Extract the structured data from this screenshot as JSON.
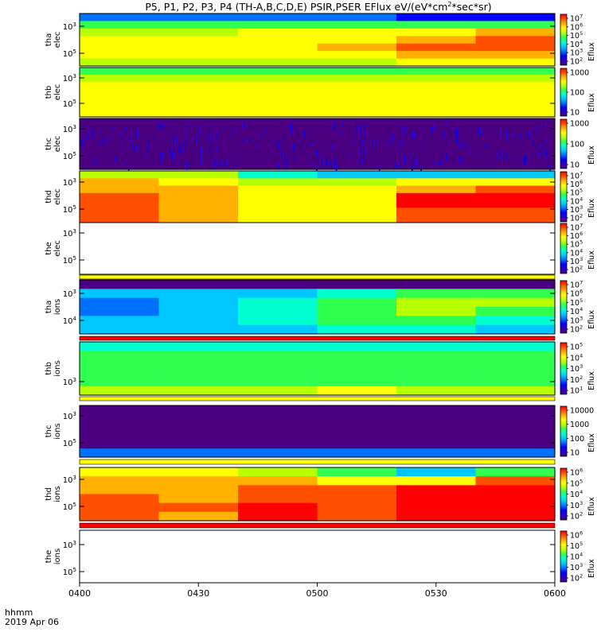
{
  "title_main": "P5, P1, P2, P3, P4 (TH-A,B,C,D,E) PSIR,PSER EFlux eV/(eV*cm",
  "title_sup": "2",
  "title_tail": "*sec*sr)",
  "time_axis": {
    "ticks": [
      "0400",
      "0430",
      "0500",
      "0530",
      "0600"
    ],
    "label_line1": "hhmm",
    "label_line2": "2019 Apr 06"
  },
  "colors": {
    "colorbar": [
      "#4b0082",
      "#2d00c8",
      "#0000ff",
      "#0070ff",
      "#00c8ff",
      "#00ffd0",
      "#30ff50",
      "#b8ff00",
      "#ffff00",
      "#ffb000",
      "#ff5000",
      "#ff0000"
    ],
    "bar_yellow": "#ffff00",
    "bar_red": "#ff0000",
    "no_data": "#ffffff"
  },
  "chart_data": [
    {
      "type": "heatmap",
      "probe": "tha",
      "species": "elec",
      "ylabel_line1": "tha",
      "ylabel_line2": "elec",
      "yticks": [
        {
          "base": "10",
          "exp": "3"
        },
        {
          "base": "10",
          "exp": "5"
        }
      ],
      "colorbar_ticks": [
        {
          "base": "10",
          "exp": "7"
        },
        {
          "base": "10",
          "exp": "6"
        },
        {
          "base": "10",
          "exp": "5"
        },
        {
          "base": "10",
          "exp": "4"
        },
        {
          "base": "10",
          "exp": "3"
        },
        {
          "base": "10",
          "exp": "2"
        }
      ],
      "colorbar_label": "Eflux",
      "x_range": [
        "0400",
        "0600"
      ],
      "band_levels": [
        [
          3,
          3,
          3,
          3,
          2,
          2
        ],
        [
          6,
          6,
          6,
          6,
          6,
          6
        ],
        [
          7,
          7,
          8,
          8,
          8,
          9
        ],
        [
          8,
          8,
          8,
          8,
          9,
          10
        ],
        [
          8,
          8,
          8,
          9,
          10,
          10
        ],
        [
          8,
          8,
          8,
          8,
          9,
          9
        ],
        [
          7,
          7,
          7,
          7,
          8,
          8
        ]
      ]
    },
    {
      "type": "heatmap",
      "probe": "thb",
      "species": "elec",
      "ylabel_line1": "thb",
      "ylabel_line2": "elec",
      "yticks": [
        {
          "base": "10",
          "exp": "3"
        },
        {
          "base": "10",
          "exp": "5"
        }
      ],
      "colorbar_ticks": [
        {
          "base": "",
          "exp": "1000"
        },
        {
          "base": "",
          "exp": "100"
        },
        {
          "base": "",
          "exp": "10"
        }
      ],
      "colorbar_label": "Eflux",
      "x_range": [
        "0400",
        "0600"
      ],
      "band_levels": [
        [
          6,
          6,
          6,
          6,
          6,
          6
        ],
        [
          7,
          7,
          7,
          7,
          7,
          7
        ],
        [
          8,
          8,
          8,
          8,
          8,
          8
        ],
        [
          8,
          8,
          8,
          8,
          8,
          8
        ],
        [
          8,
          8,
          8,
          8,
          8,
          8
        ],
        [
          8,
          8,
          8,
          8,
          8,
          8
        ],
        [
          8,
          8,
          8,
          8,
          8,
          8
        ]
      ]
    },
    {
      "type": "heatmap",
      "probe": "thc",
      "species": "elec",
      "ylabel_line1": "thc",
      "ylabel_line2": "elec",
      "yticks": [
        {
          "base": "10",
          "exp": "3"
        },
        {
          "base": "10",
          "exp": "5"
        }
      ],
      "colorbar_ticks": [
        {
          "base": "",
          "exp": "1000"
        },
        {
          "base": "",
          "exp": "100"
        },
        {
          "base": "",
          "exp": "10"
        }
      ],
      "colorbar_label": "Eflux",
      "x_range": [
        "0400",
        "0600"
      ],
      "band_levels": [
        [
          0,
          0,
          0,
          0,
          0,
          0
        ],
        [
          0,
          0,
          0,
          0,
          0,
          0
        ],
        [
          0,
          0,
          0,
          0,
          0,
          0
        ],
        [
          0,
          0,
          0,
          0,
          0,
          0
        ],
        [
          0,
          0,
          0,
          0,
          0,
          0
        ],
        [
          0,
          0,
          0,
          0,
          0,
          0
        ],
        [
          0,
          0,
          0,
          0,
          0,
          0
        ]
      ]
    },
    {
      "type": "heatmap",
      "probe": "thd",
      "species": "elec",
      "ylabel_line1": "thd",
      "ylabel_line2": "elec",
      "yticks": [
        {
          "base": "10",
          "exp": "3"
        },
        {
          "base": "10",
          "exp": "5"
        }
      ],
      "colorbar_ticks": [
        {
          "base": "10",
          "exp": "7"
        },
        {
          "base": "10",
          "exp": "6"
        },
        {
          "base": "10",
          "exp": "5"
        },
        {
          "base": "10",
          "exp": "4"
        },
        {
          "base": "10",
          "exp": "3"
        },
        {
          "base": "10",
          "exp": "2"
        }
      ],
      "colorbar_label": "Eflux",
      "x_range": [
        "0400",
        "0600"
      ],
      "band_levels": [
        [
          7,
          7,
          5,
          4,
          4,
          4
        ],
        [
          9,
          8,
          7,
          7,
          8,
          8
        ],
        [
          9,
          9,
          8,
          8,
          9,
          10
        ],
        [
          10,
          9,
          8,
          8,
          11,
          11
        ],
        [
          10,
          9,
          8,
          8,
          11,
          11
        ],
        [
          10,
          9,
          8,
          8,
          10,
          10
        ],
        [
          10,
          9,
          8,
          8,
          10,
          10
        ]
      ]
    },
    {
      "type": "heatmap",
      "probe": "the",
      "species": "elec",
      "ylabel_line1": "the",
      "ylabel_line2": "elec",
      "yticks": [
        {
          "base": "10",
          "exp": "3"
        },
        {
          "base": "10",
          "exp": "5"
        }
      ],
      "colorbar_ticks": [
        {
          "base": "10",
          "exp": "7"
        },
        {
          "base": "10",
          "exp": "6"
        },
        {
          "base": "10",
          "exp": "5"
        },
        {
          "base": "10",
          "exp": "4"
        },
        {
          "base": "10",
          "exp": "3"
        },
        {
          "base": "10",
          "exp": "2"
        }
      ],
      "colorbar_label": "Eflux",
      "x_range": [
        "0400",
        "0600"
      ],
      "band_levels": []
    },
    {
      "type": "heatmap",
      "probe": "tha",
      "species": "ions",
      "ylabel_line1": "tha",
      "ylabel_line2": "ions",
      "yticks": [
        {
          "base": "10",
          "exp": "3"
        },
        {
          "base": "10",
          "exp": "4"
        }
      ],
      "colorbar_ticks": [
        {
          "base": "10",
          "exp": "7"
        },
        {
          "base": "10",
          "exp": "6"
        },
        {
          "base": "10",
          "exp": "5"
        },
        {
          "base": "10",
          "exp": "4"
        },
        {
          "base": "10",
          "exp": "3"
        },
        {
          "base": "10",
          "exp": "2"
        }
      ],
      "colorbar_label": "Eflux",
      "x_range": [
        "0400",
        "0600"
      ],
      "band_levels": [
        [
          0,
          0,
          0,
          0,
          0,
          0
        ],
        [
          4,
          4,
          4,
          5,
          6,
          6
        ],
        [
          3,
          4,
          5,
          6,
          7,
          7
        ],
        [
          3,
          4,
          5,
          6,
          7,
          6
        ],
        [
          4,
          4,
          5,
          6,
          6,
          5
        ],
        [
          4,
          4,
          4,
          5,
          5,
          4
        ]
      ]
    },
    {
      "type": "heatmap",
      "probe": "thb",
      "species": "ions",
      "ylabel_line1": "thb",
      "ylabel_line2": "ions",
      "yticks": [
        {
          "base": "10",
          "exp": "3"
        }
      ],
      "colorbar_ticks": [
        {
          "base": "10",
          "exp": "5"
        },
        {
          "base": "10",
          "exp": "4"
        },
        {
          "base": "10",
          "exp": "3"
        },
        {
          "base": "10",
          "exp": "2"
        },
        {
          "base": "10",
          "exp": "1"
        }
      ],
      "colorbar_label": "Eflux",
      "x_range": [
        "0400",
        "0600"
      ],
      "band_levels": [
        [
          5,
          5,
          5,
          5,
          5,
          5
        ],
        [
          6,
          6,
          6,
          6,
          6,
          6
        ],
        [
          6,
          6,
          6,
          6,
          6,
          6
        ],
        [
          6,
          6,
          6,
          6,
          6,
          6
        ],
        [
          6,
          6,
          6,
          6,
          6,
          6
        ],
        [
          7,
          7,
          7,
          8,
          7,
          7
        ]
      ]
    },
    {
      "type": "heatmap",
      "probe": "thc",
      "species": "ions",
      "ylabel_line1": "thc",
      "ylabel_line2": "ions",
      "yticks": [
        {
          "base": "10",
          "exp": "3"
        },
        {
          "base": "10",
          "exp": "5"
        }
      ],
      "colorbar_ticks": [
        {
          "base": "",
          "exp": "10000"
        },
        {
          "base": "",
          "exp": "1000"
        },
        {
          "base": "",
          "exp": "100"
        },
        {
          "base": "",
          "exp": "10"
        }
      ],
      "colorbar_label": "Eflux",
      "x_range": [
        "0400",
        "0600"
      ],
      "band_levels": [
        [
          0,
          0,
          0,
          0,
          0,
          0
        ],
        [
          0,
          0,
          0,
          0,
          0,
          0
        ],
        [
          0,
          0,
          0,
          0,
          0,
          0
        ],
        [
          0,
          0,
          0,
          0,
          0,
          0
        ],
        [
          0,
          0,
          0,
          0,
          0,
          0
        ],
        [
          3,
          3,
          3,
          3,
          3,
          3
        ]
      ]
    },
    {
      "type": "heatmap",
      "probe": "thd",
      "species": "ions",
      "ylabel_line1": "thd",
      "ylabel_line2": "ions",
      "yticks": [
        {
          "base": "10",
          "exp": "3"
        },
        {
          "base": "10",
          "exp": "5"
        }
      ],
      "colorbar_ticks": [
        {
          "base": "10",
          "exp": "6"
        },
        {
          "base": "10",
          "exp": "5"
        },
        {
          "base": "10",
          "exp": "4"
        },
        {
          "base": "10",
          "exp": "3"
        },
        {
          "base": "10",
          "exp": "2"
        }
      ],
      "colorbar_label": "Eflux",
      "x_range": [
        "0400",
        "0600"
      ],
      "band_levels": [
        [
          8,
          8,
          7,
          6,
          4,
          6
        ],
        [
          9,
          9,
          9,
          8,
          8,
          10
        ],
        [
          9,
          9,
          10,
          10,
          11,
          11
        ],
        [
          10,
          9,
          10,
          10,
          11,
          11
        ],
        [
          10,
          10,
          11,
          10,
          11,
          11
        ],
        [
          10,
          9,
          11,
          10,
          11,
          11
        ]
      ]
    },
    {
      "type": "heatmap",
      "probe": "the",
      "species": "ions",
      "ylabel_line1": "the",
      "ylabel_line2": "ions",
      "yticks": [
        {
          "base": "10",
          "exp": "3"
        },
        {
          "base": "10",
          "exp": "5"
        }
      ],
      "colorbar_ticks": [
        {
          "base": "10",
          "exp": "6"
        },
        {
          "base": "10",
          "exp": "5"
        },
        {
          "base": "10",
          "exp": "4"
        },
        {
          "base": "10",
          "exp": "3"
        },
        {
          "base": "10",
          "exp": "2"
        }
      ],
      "colorbar_label": "Eflux",
      "x_range": [
        "0400",
        "0600"
      ],
      "band_levels": []
    }
  ]
}
